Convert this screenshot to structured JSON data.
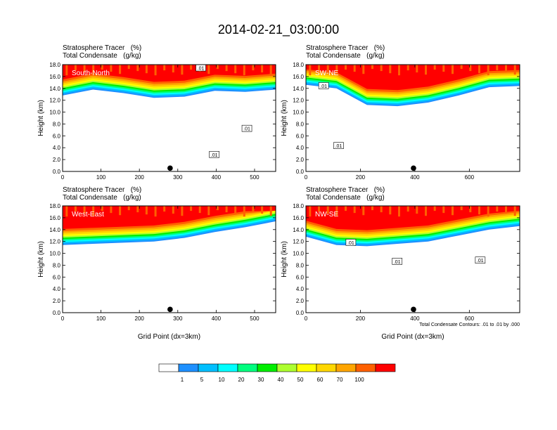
{
  "title": "2014-02-21_03:00:00",
  "panel_header": {
    "line1": "Stratosphere Tracer   (%)",
    "line2": "Total Condensate   (g/kg)"
  },
  "ylabel": "Height (km)",
  "xlabel": "Grid Point (dx=3km)",
  "contour_note": "Total Condensate Contours: .01 to .01 by .000",
  "contour_label": ".01",
  "colorbar": {
    "colors": [
      "#ffffff",
      "#1e90ff",
      "#00bfff",
      "#00ffff",
      "#00ff7f",
      "#00ee00",
      "#adff2f",
      "#ffff00",
      "#ffd700",
      "#ffa500",
      "#ff6000",
      "#ff0000"
    ],
    "labels": [
      "1",
      "5",
      "10",
      "20",
      "30",
      "40",
      "50",
      "60",
      "70",
      "100"
    ]
  },
  "chart_data": [
    {
      "type": "heatmap",
      "name": "South-North",
      "x_ticks": [
        0,
        100,
        200,
        300,
        400,
        500
      ],
      "xlim": [
        0,
        555
      ],
      "y_ticks": [
        "0.0",
        "2.0",
        "4.0",
        "6.0",
        "8.0",
        "10.0",
        "12.0",
        "14.0",
        "16.0",
        "18.0"
      ],
      "ylim": [
        0,
        18
      ],
      "marker_x": 280,
      "tracer_base_km": [
        12.8,
        13.8,
        13.2,
        12.4,
        12.6,
        13.6,
        13.4,
        13.8
      ],
      "contour_label_positions": [
        {
          "x": 360,
          "y": 17.4
        },
        {
          "x": 395,
          "y": 2.8
        },
        {
          "x": 480,
          "y": 7.2
        }
      ]
    },
    {
      "type": "heatmap",
      "name": "SW-NE",
      "x_ticks": [
        0,
        200,
        400,
        600
      ],
      "xlim": [
        0,
        785
      ],
      "y_ticks": [
        "0.0",
        "2.0",
        "4.0",
        "6.0",
        "8.0",
        "10.0",
        "12.0",
        "14.0",
        "16.0",
        "18.0"
      ],
      "ylim": [
        0,
        18
      ],
      "marker_x": 395,
      "tracer_base_km": [
        14.6,
        14.0,
        11.2,
        11.0,
        11.6,
        12.8,
        14.2,
        14.4
      ],
      "contour_label_positions": [
        {
          "x": 65,
          "y": 14.4
        },
        {
          "x": 120,
          "y": 4.3
        }
      ]
    },
    {
      "type": "heatmap",
      "name": "West-East",
      "x_ticks": [
        0,
        100,
        200,
        300,
        400,
        500
      ],
      "xlim": [
        0,
        555
      ],
      "y_ticks": [
        "0.0",
        "2.0",
        "4.0",
        "6.0",
        "8.0",
        "10.0",
        "12.0",
        "14.0",
        "16.0",
        "18.0"
      ],
      "ylim": [
        0,
        18
      ],
      "marker_x": 280,
      "tracer_base_km": [
        11.4,
        11.6,
        11.8,
        12.0,
        12.6,
        13.6,
        14.4,
        15.4
      ],
      "contour_label_positions": []
    },
    {
      "type": "heatmap",
      "name": "NW-SE",
      "x_ticks": [
        0,
        200,
        400,
        600
      ],
      "xlim": [
        0,
        785
      ],
      "y_ticks": [
        "0.0",
        "2.0",
        "4.0",
        "6.0",
        "8.0",
        "10.0",
        "12.0",
        "14.0",
        "16.0",
        "18.0"
      ],
      "ylim": [
        0,
        18
      ],
      "marker_x": 395,
      "tracer_base_km": [
        12.8,
        11.4,
        11.2,
        11.6,
        12.0,
        13.0,
        14.0,
        14.6
      ],
      "contour_label_positions": [
        {
          "x": 165,
          "y": 11.8
        },
        {
          "x": 335,
          "y": 8.6
        },
        {
          "x": 640,
          "y": 8.8
        }
      ]
    }
  ]
}
